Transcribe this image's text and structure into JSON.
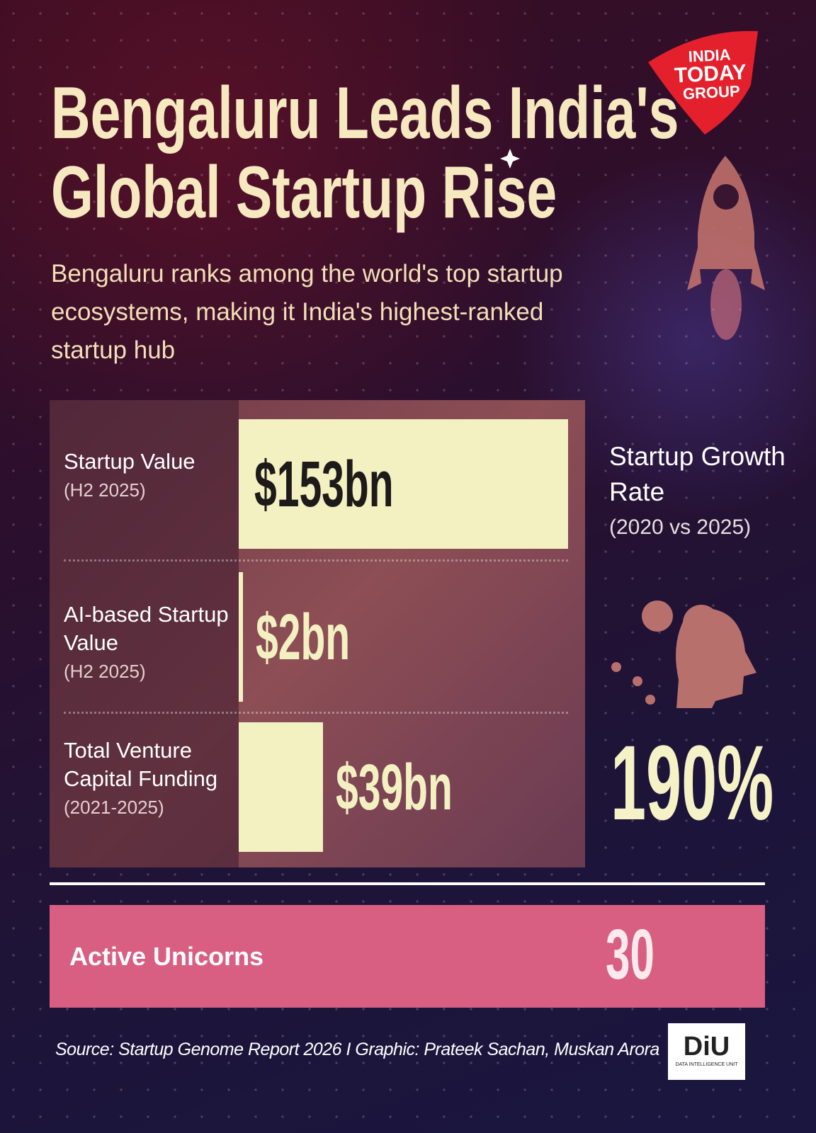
{
  "header": {
    "title_lines": [
      "Bengaluru Leads India's",
      "Global Startup Rise"
    ],
    "subtitle": "Bengaluru ranks among the world's top startup ecosystems, making it India's highest-ranked startup hub",
    "logo": [
      "INDIA",
      "TODAY",
      "GROUP"
    ]
  },
  "chart_data": {
    "type": "bar",
    "categories": [
      "Startup Value",
      "AI-based Startup Value",
      "Total Venture Capital Funding"
    ],
    "category_notes": [
      "(H2 2025)",
      "(H2 2025)",
      "(2021-2025)"
    ],
    "values": [
      153,
      2,
      39
    ],
    "value_labels": [
      "$153bn",
      "$2bn",
      "$39bn"
    ],
    "color": "#f3f0c2"
  },
  "growth": {
    "label": "Startup Growth Rate",
    "period": "(2020 vs 2025)",
    "value": "190%"
  },
  "unicorns": {
    "label": "Active Unicorns",
    "value": 30
  },
  "footer": {
    "source": "Source: Startup Genome Report 2026 I Graphic: Prateek Sachan, Muskan Arora",
    "logo": "DiU",
    "logo_caption": "DATA INTELLIGENCE UNIT"
  }
}
